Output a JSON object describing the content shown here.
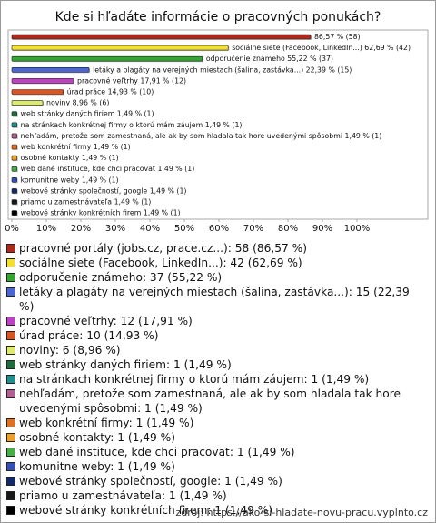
{
  "chart_data": {
    "type": "bar",
    "orientation": "horizontal",
    "title": "Kde si hľadáte informácie o pracovných ponukách?",
    "categories": [
      null,
      "sociálne siete (Facebook, LinkedIn...)",
      "odporučenie známeho",
      "letáky a plagáty na verejných miestach (šalina, zastávka...)",
      "pracovné veľtrhy",
      "úrad práce",
      "noviny",
      "web stránky daných firiem",
      "na stránkach konkrétnej firmy o ktorú mám záujem",
      "nehľadám, pretože som zamestnaná, ale ak by som hladala tak hore uvedenými spôsobmi",
      "web konkrétní firmy",
      "osobné kontakty",
      "web dané instituce, kde chci pracovat",
      "komunitne weby",
      "webové stránky společností, google",
      "priamo u zamestnávateľa",
      "webové stránky konkrétních firem"
    ],
    "values": [
      86.57,
      62.69,
      55.22,
      22.39,
      17.91,
      14.93,
      8.96,
      1.49,
      1.49,
      1.49,
      1.49,
      1.49,
      1.49,
      1.49,
      1.49,
      1.49,
      1.49
    ],
    "value_labels": [
      "86,57 % (58)",
      "62,69 % (42)",
      "55,22 % (37)",
      "22,39 % (15)",
      "17,91 % (12)",
      "14,93 % (10)",
      "8,96 % (6)",
      "1,49 % (1)",
      "1,49 % (1)",
      "1,49 % (1)",
      "1,49 % (1)",
      "1,49 % (1)",
      "1,49 % (1)",
      "1,49 % (1)",
      "1,49 % (1)",
      "1,49 % (1)",
      "1,49 % (1)"
    ],
    "colors": [
      "#b0281a",
      "#f2e02a",
      "#33a531",
      "#4a66d6",
      "#c13fc6",
      "#e0531f",
      "#dcec6a",
      "#1f6b3a",
      "#1f9090",
      "#b05f92",
      "#e07020",
      "#f0a020",
      "#44b044",
      "#3450b8",
      "#122a6a",
      "#181818",
      "#000000"
    ],
    "legend": [
      "pracovné portály (jobs.cz, prace.cz...): 58 (86,57 %)",
      "sociálne siete (Facebook, LinkedIn...): 42 (62,69 %)",
      "odporučenie známeho: 37 (55,22 %)",
      "letáky a plagáty na verejných miestach (šalina, zastávka...): 15 (22,39 %)",
      "pracovné veľtrhy: 12 (17,91 %)",
      "úrad práce: 10 (14,93 %)",
      "noviny: 6 (8,96 %)",
      "web stránky daných firiem: 1 (1,49 %)",
      "na stránkach konkrétnej firmy o ktorú mám záujem: 1 (1,49 %)",
      "nehľadám, pretože som zamestnaná, ale ak by som hladala tak hore uvedenými spôsobmi: 1 (1,49 %)",
      "web konkrétní firmy: 1 (1,49 %)",
      "osobné kontakty: 1 (1,49 %)",
      "web dané instituce, kde chci pracovat: 1 (1,49 %)",
      "komunitne weby: 1 (1,49 %)",
      "webové stránky společností, google: 1 (1,49 %)",
      "priamo u zamestnávateľa: 1 (1,49 %)",
      "webové stránky konkrétních firem: 1 (1,49 %)"
    ],
    "xlim": [
      0,
      100
    ],
    "xticks": [
      {
        "value": 0,
        "label": "0%"
      },
      {
        "value": 10,
        "label": "10%"
      },
      {
        "value": 20,
        "label": "20%"
      },
      {
        "value": 30,
        "label": "30%"
      },
      {
        "value": 40,
        "label": "40%"
      },
      {
        "value": 50,
        "label": "50%"
      },
      {
        "value": 60,
        "label": "60%"
      },
      {
        "value": 70,
        "label": "70%"
      },
      {
        "value": 80,
        "label": "80%"
      },
      {
        "value": 90,
        "label": "90%"
      },
      {
        "value": 100,
        "label": "100%"
      }
    ],
    "source": "zdroj: https://ako-si-hladate-novu-pracu.vyplnto.cz"
  }
}
